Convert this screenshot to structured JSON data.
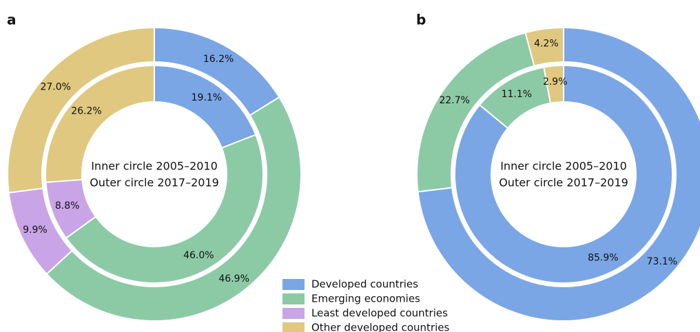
{
  "legend": {
    "categories": [
      "Developed countries",
      "Emerging economies",
      "Least developed countries",
      "Other developed countries"
    ],
    "colors": [
      "#7aa6e6",
      "#8ccaa6",
      "#c9a4e6",
      "#e0c880"
    ]
  },
  "chart_data": [
    {
      "type": "donut",
      "panel": "a",
      "rings": [
        {
          "name": "Inner circle 2005–2010",
          "values": [
            19.1,
            46.0,
            8.8,
            26.2
          ],
          "value_labels": [
            "19.1%",
            "46.0%",
            "8.8%",
            "26.2%"
          ]
        },
        {
          "name": "Outer circle 2017–2019",
          "values": [
            16.2,
            46.9,
            9.9,
            27.0
          ],
          "value_labels": [
            "16.2%",
            "46.9%",
            "9.9%",
            "27.0%"
          ]
        }
      ]
    },
    {
      "type": "donut",
      "panel": "b",
      "rings": [
        {
          "name": "Inner circle 2005–2010",
          "values": [
            85.9,
            11.1,
            null,
            2.9
          ],
          "value_labels": [
            "85.9%",
            "11.1%",
            null,
            "2.9%"
          ]
        },
        {
          "name": "Outer circle 2017–2019",
          "values": [
            73.1,
            22.7,
            null,
            4.2
          ],
          "value_labels": [
            "73.1%",
            "22.7%",
            null,
            "4.2%"
          ]
        }
      ]
    }
  ]
}
